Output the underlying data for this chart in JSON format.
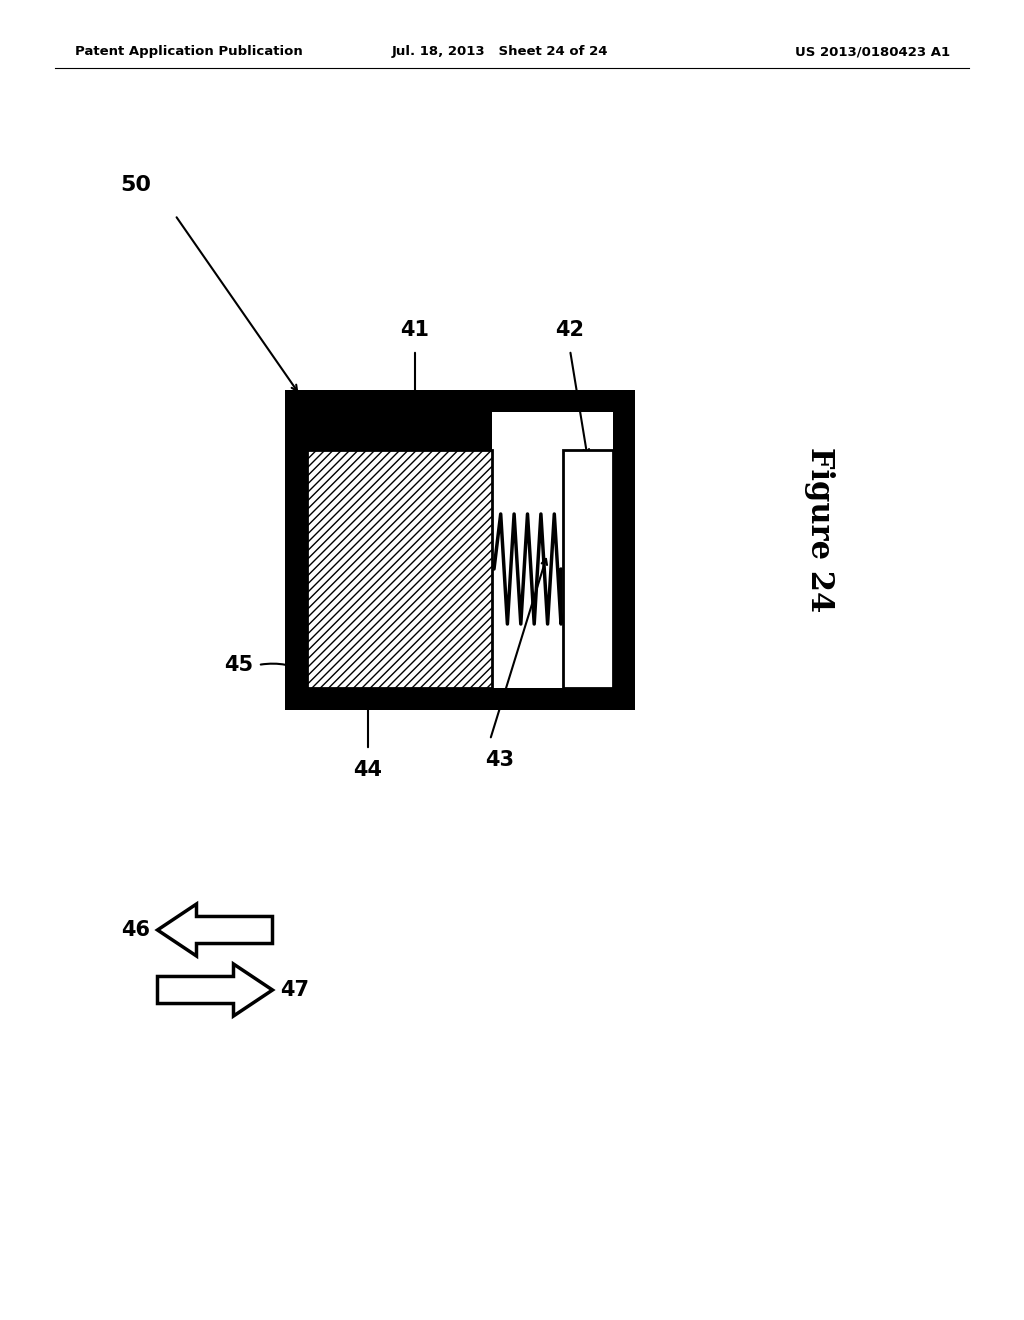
{
  "bg_color": "#ffffff",
  "header_left": "Patent Application Publication",
  "header_mid": "Jul. 18, 2013   Sheet 24 of 24",
  "header_right": "US 2013/0180423 A1",
  "figure_label": "Figure 24",
  "label_50": "50",
  "label_41": "41",
  "label_42": "42",
  "label_43": "43",
  "label_44": "44",
  "label_45": "45",
  "label_46": "46",
  "label_47": "47"
}
